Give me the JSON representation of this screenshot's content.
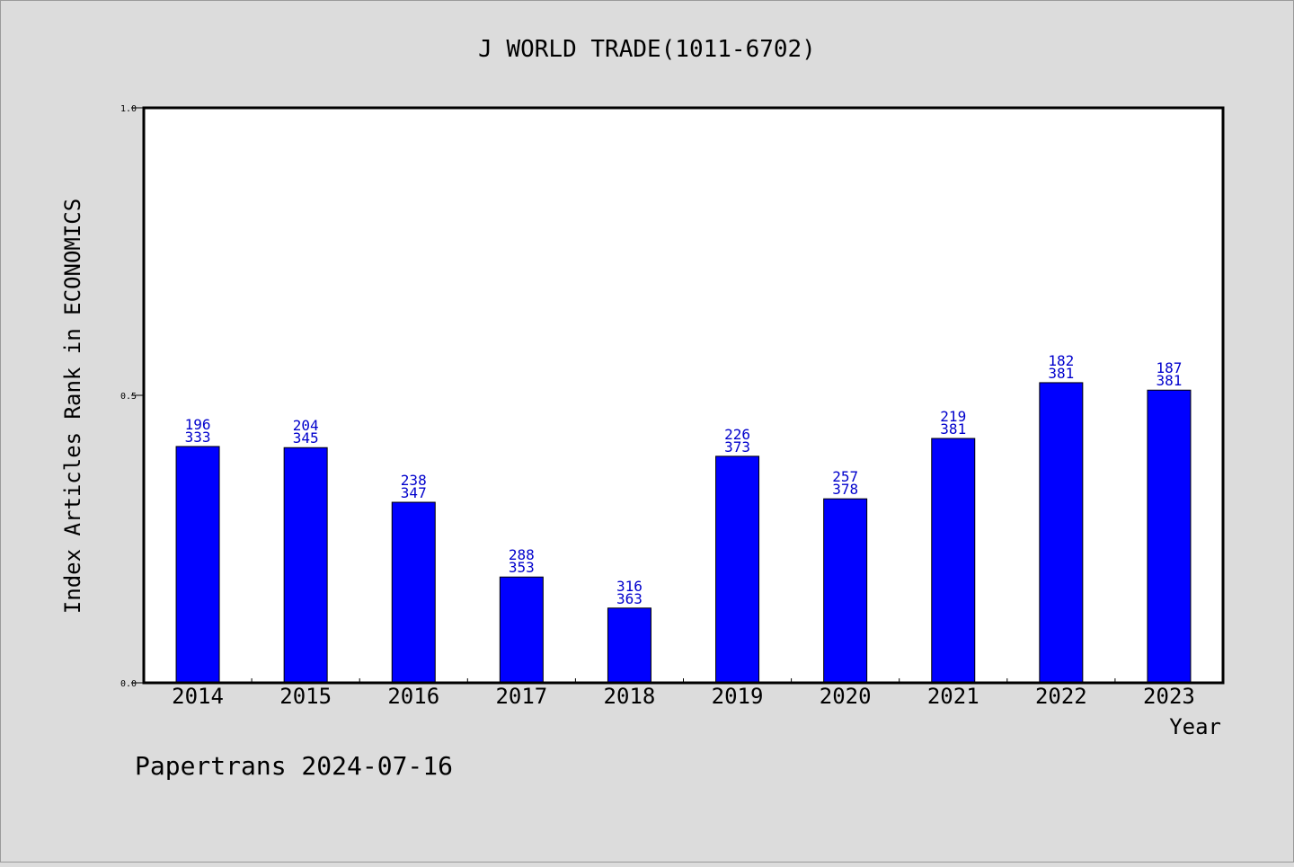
{
  "footer": "Papertrans 2024-07-16",
  "colors": {
    "background": "#dcdcdc",
    "plot_background": "#ffffff",
    "bar": "#0000ff",
    "label": "#0000cc",
    "text": "#000000"
  },
  "chart_data": {
    "type": "bar",
    "title": "J WORLD TRADE(1011-6702)",
    "xlabel": "Year",
    "ylabel": "Index Articles Rank in ECONOMICS",
    "ylim": [
      0,
      1
    ],
    "yticks": [
      "0.0",
      "0.5",
      "1.0"
    ],
    "grid": false,
    "categories": [
      "2014",
      "2015",
      "2016",
      "2017",
      "2018",
      "2019",
      "2020",
      "2021",
      "2022",
      "2023"
    ],
    "values": [
      0.411,
      0.409,
      0.314,
      0.184,
      0.13,
      0.394,
      0.32,
      0.425,
      0.522,
      0.509
    ],
    "ranks": [
      "196",
      "204",
      "238",
      "288",
      "316",
      "226",
      "257",
      "219",
      "182",
      "187"
    ],
    "totals": [
      "333",
      "345",
      "347",
      "353",
      "363",
      "373",
      "378",
      "381",
      "381",
      "381"
    ]
  }
}
